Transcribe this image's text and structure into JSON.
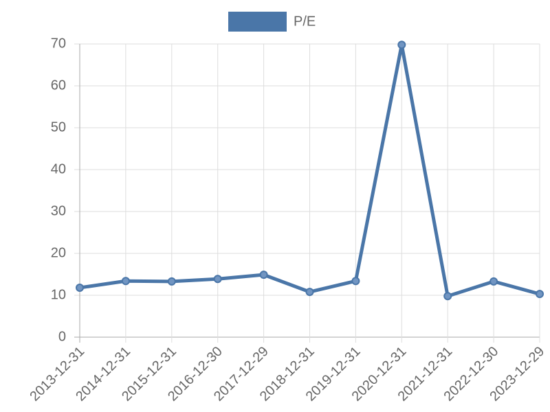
{
  "chart_data": {
    "type": "line",
    "categories": [
      "2013-12-31",
      "2014-12-31",
      "2015-12-31",
      "2016-12-30",
      "2017-12-29",
      "2018-12-31",
      "2019-12-31",
      "2020-12-31",
      "2021-12-31",
      "2022-12-30",
      "2023-12-29"
    ],
    "series": [
      {
        "name": "P/E",
        "color": "#4a76a8",
        "values": [
          11.8,
          13.4,
          13.3,
          13.9,
          14.9,
          10.8,
          13.4,
          69.8,
          9.8,
          13.3,
          10.3
        ]
      }
    ],
    "ylim": [
      0,
      70
    ],
    "yticks": [
      0,
      10,
      20,
      30,
      40,
      50,
      60,
      70
    ],
    "grid": true,
    "legend": "top"
  }
}
